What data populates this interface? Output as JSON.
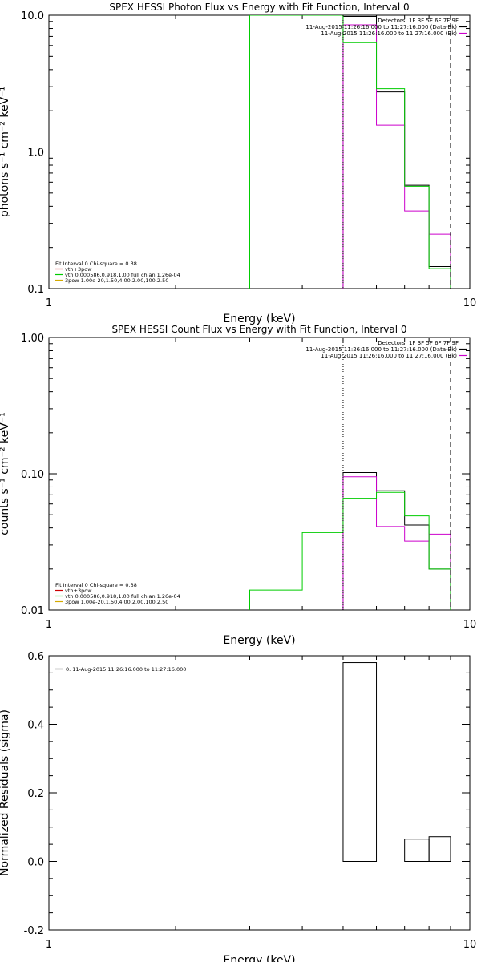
{
  "chart_data": [
    {
      "type": "line",
      "title": "SPEX HESSI Photon Flux vs Energy with Fit Function, Interval 0",
      "xlabel": "Energy (keV)",
      "ylabel": "photons s⁻¹ cm⁻² keV⁻¹",
      "xscale": "log",
      "yscale": "log",
      "xlim": [
        1,
        10
      ],
      "ylim": [
        0.1,
        10
      ],
      "x_tick_labels": [
        "1",
        "10"
      ],
      "y_tick_labels": [
        "0.1",
        "1.0",
        "10.0"
      ],
      "y_ticks": [
        0.1,
        1.0,
        10.0
      ],
      "legend_top": {
        "position": "top-right",
        "lines": [
          {
            "text": "Detectors: 1F 3F 5F 6F 7F 9F",
            "color": null
          },
          {
            "text": "11-Aug-2015 11:26:16.000 to 11:27:16.000 (Data-Bk)",
            "color": "#000000"
          },
          {
            "text": "11-Aug-2015 11:26:16.000 to 11:27:16.000 (Bk)",
            "color": "#cc00cc"
          }
        ]
      },
      "legend_fit": {
        "position": "bottom-left",
        "lines": [
          {
            "text": "Fit Interval 0    Chi-square = 0.38",
            "color": null
          },
          {
            "text": "vth+3pow",
            "color": "#cc0000"
          },
          {
            "text": "vth 0.000586,0.918,1.00  full chian 1.26e-04",
            "color": "#00cc00"
          },
          {
            "text": "3pow 1.00e-20,1.50,4.00,2.00,100,2.50",
            "color": "#d4aa00"
          }
        ]
      },
      "vlines": [
        {
          "x": 5.0,
          "style": "dotted"
        },
        {
          "x": 9.0,
          "style": "dashed"
        }
      ],
      "series": [
        {
          "name": "Data-Bk",
          "color": "#000000",
          "edges": [
            5,
            6,
            7,
            8,
            9
          ],
          "values": [
            9.8,
            2.75,
            0.57,
            0.145
          ]
        },
        {
          "name": "Bk",
          "color": "#cc00cc",
          "edges": [
            5,
            6,
            7,
            8,
            9
          ],
          "values": [
            8.5,
            1.57,
            0.37,
            0.25
          ]
        },
        {
          "name": "vth+3pow",
          "color": "#00cc00",
          "edges": [
            3,
            4,
            5,
            6,
            7,
            8,
            9
          ],
          "values": [
            12,
            11,
            6.3,
            2.9,
            0.56,
            0.14
          ]
        }
      ]
    },
    {
      "type": "line",
      "title": "SPEX HESSI Count Flux vs Energy with Fit Function, Interval 0",
      "xlabel": "Energy (keV)",
      "ylabel": "counts s⁻¹ cm⁻² keV⁻¹",
      "xscale": "log",
      "yscale": "log",
      "xlim": [
        1,
        10
      ],
      "ylim": [
        0.01,
        1.0
      ],
      "x_tick_labels": [
        "1",
        "10"
      ],
      "y_tick_labels": [
        "0.01",
        "0.10",
        "1.00"
      ],
      "y_ticks": [
        0.01,
        0.1,
        1.0
      ],
      "legend_top": {
        "position": "top-right",
        "lines": [
          {
            "text": "Detectors: 1F 3F 5F 6F 7F 9F",
            "color": null
          },
          {
            "text": "11-Aug-2015 11:26:16.000 to 11:27:16.000 (Data-Bk)",
            "color": "#000000"
          },
          {
            "text": "11-Aug-2015 11:26:16.000 to 11:27:16.000 (Bk)",
            "color": "#cc00cc"
          }
        ]
      },
      "legend_fit": {
        "position": "bottom-left",
        "lines": [
          {
            "text": "Fit Interval 0    Chi-square = 0.38",
            "color": null
          },
          {
            "text": "vth+3pow",
            "color": "#cc0000"
          },
          {
            "text": "vth 0.000586,0.918,1.00  full chian 1.26e-04",
            "color": "#00cc00"
          },
          {
            "text": "3pow 1.00e-20,1.50,4.00,2.00,100,2.50",
            "color": "#d4aa00"
          }
        ]
      },
      "vlines": [
        {
          "x": 5.0,
          "style": "dotted"
        },
        {
          "x": 9.0,
          "style": "dashed"
        }
      ],
      "series": [
        {
          "name": "Data-Bk",
          "color": "#000000",
          "edges": [
            5,
            6,
            7,
            8,
            9
          ],
          "values": [
            0.102,
            0.075,
            0.042,
            0.02
          ]
        },
        {
          "name": "Bk",
          "color": "#cc00cc",
          "edges": [
            5,
            6,
            7,
            8,
            9
          ],
          "values": [
            0.095,
            0.041,
            0.032,
            0.036
          ]
        },
        {
          "name": "vth+3pow",
          "color": "#00cc00",
          "edges": [
            3,
            4,
            5,
            6,
            7,
            8,
            9
          ],
          "values": [
            0.014,
            0.037,
            0.066,
            0.073,
            0.049,
            0.02
          ]
        }
      ]
    },
    {
      "type": "bar",
      "title": "",
      "xlabel": "Energy (keV)",
      "ylabel": "Normalized Residuals (sigma)",
      "xscale": "log",
      "yscale": "linear",
      "xlim": [
        1,
        10
      ],
      "ylim": [
        -0.2,
        0.6
      ],
      "x_tick_labels": [
        "1",
        "10"
      ],
      "y_ticks": [
        -0.2,
        0.0,
        0.2,
        0.4,
        0.6
      ],
      "y_tick_labels": [
        "-0.2",
        "0.0",
        "0.2",
        "0.4",
        "0.6"
      ],
      "legend": {
        "position": "top-left",
        "lines": [
          {
            "text": "0. 11-Aug-2015 11:26:16.000 to 11:27:16.000",
            "color": "#000000"
          }
        ]
      },
      "series": [
        {
          "name": "0. 11-Aug-2015 11:26:16.000 to 11:27:16.000",
          "color": "#000000",
          "edges": [
            5,
            6,
            7,
            8,
            9
          ],
          "values": [
            0.58,
            0.0,
            0.065,
            0.072
          ]
        }
      ]
    }
  ]
}
